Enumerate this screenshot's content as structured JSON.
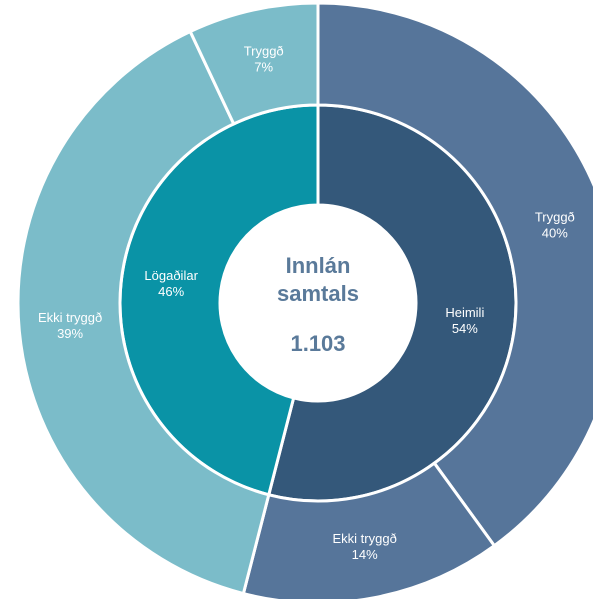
{
  "chart_data": {
    "type": "nested-donut",
    "center": {
      "title": "Innlán samtals",
      "value": 1103,
      "label": "1.103"
    },
    "rings": [
      {
        "categories": [
          "Heimili",
          "Lögaðilar"
        ],
        "values": [
          54,
          46
        ],
        "value_labels": [
          "54%",
          "46%"
        ],
        "colors": [
          "#34587a",
          "#0a93a6"
        ]
      },
      {
        "categories": [
          "Tryggð",
          "Ekki tryggð",
          "Ekki tryggð",
          "Tryggð"
        ],
        "values": [
          40,
          14,
          39,
          7
        ],
        "value_labels": [
          "40%",
          "14%",
          "39%",
          "7%"
        ],
        "colors": [
          "#56759a",
          "#56759a",
          "#7bbcc9",
          "#7bbcc9"
        ]
      }
    ]
  }
}
